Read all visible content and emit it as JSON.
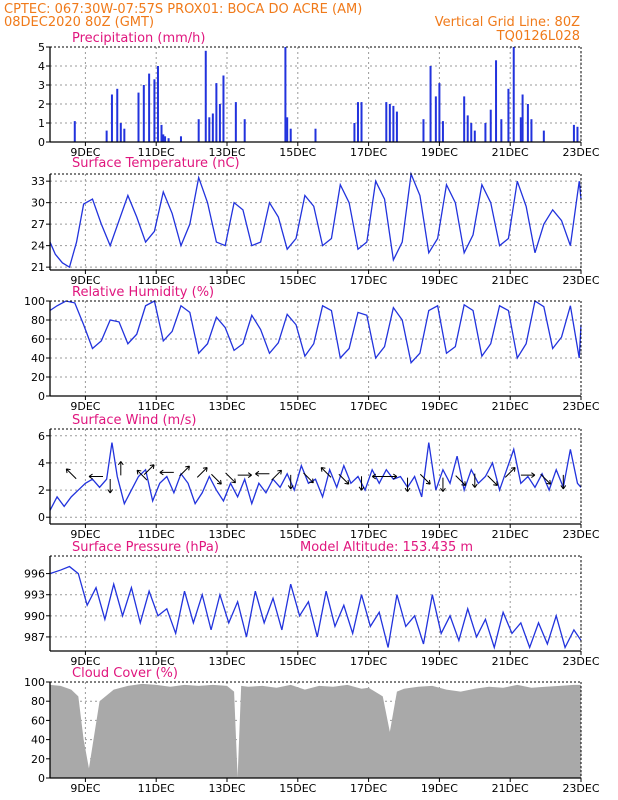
{
  "header": {
    "line1_left": "CPTEC:  067:30W-07:57S  PROX01: BOCA DO ACRE (AM)",
    "line2_left": "08DEC2020 80Z (GMT)",
    "line2_right": "Vertical Grid Line: 80Z",
    "line3_right": "TQ0126L028"
  },
  "colors": {
    "header": "#f07a1a",
    "panel_title": "#e0167e",
    "series": "#2233dd",
    "cloud_fill": "#a9a9a9",
    "grid": "#9a9a9a",
    "wind_arrow": "#000000"
  },
  "chart_data": [
    {
      "id": "precip",
      "type": "bar",
      "title": "Precipitation (mm/h)",
      "ylim": [
        0,
        5
      ],
      "yticks": [
        0,
        1,
        2,
        3,
        4,
        5
      ],
      "xlim": [
        8.0,
        23.0
      ],
      "xticks": [
        "9DEC",
        "11DEC",
        "13DEC",
        "15DEC",
        "17DEC",
        "19DEC",
        "21DEC",
        "23DEC"
      ],
      "grid": true,
      "x": [
        8.7,
        9.6,
        9.75,
        9.9,
        10.0,
        10.1,
        10.5,
        10.65,
        10.8,
        10.95,
        11.05,
        11.15,
        11.2,
        11.25,
        11.35,
        11.7,
        12.2,
        12.4,
        12.5,
        12.6,
        12.7,
        12.8,
        12.9,
        13.25,
        13.5,
        14.65,
        14.7,
        14.8,
        15.5,
        16.6,
        16.7,
        16.8,
        17.5,
        17.6,
        17.7,
        17.8,
        18.55,
        18.75,
        18.9,
        19.0,
        19.1,
        19.7,
        19.8,
        19.9,
        20.0,
        20.3,
        20.45,
        20.6,
        20.75,
        20.95,
        21.1,
        21.3,
        21.35,
        21.5,
        21.6,
        21.95,
        22.8,
        22.9
      ],
      "values": [
        1.1,
        0.6,
        2.5,
        2.8,
        1.0,
        0.7,
        2.6,
        3.0,
        3.6,
        3.3,
        4.0,
        0.9,
        0.4,
        0.3,
        0.2,
        0.3,
        1.2,
        4.8,
        1.3,
        1.5,
        3.1,
        2.0,
        3.5,
        2.1,
        1.2,
        5.0,
        1.3,
        0.7,
        0.7,
        1.0,
        2.1,
        2.1,
        2.1,
        2.0,
        1.9,
        1.6,
        1.2,
        4.0,
        2.4,
        3.1,
        1.1,
        2.4,
        1.4,
        1.0,
        0.6,
        1.0,
        1.7,
        4.3,
        1.2,
        2.8,
        5.0,
        1.3,
        2.5,
        2.0,
        1.2,
        0.6,
        0.9,
        0.8
      ]
    },
    {
      "id": "temp",
      "type": "line",
      "title": "Surface Temperature (nC)",
      "ylim": [
        20.6,
        34.0
      ],
      "yticks": [
        21,
        24,
        27,
        30,
        33
      ],
      "xlim": [
        8.0,
        23.0
      ],
      "xticks": [
        "9DEC",
        "11DEC",
        "13DEC",
        "15DEC",
        "17DEC",
        "19DEC",
        "21DEC",
        "23DEC"
      ],
      "grid": true,
      "x": [
        8.0,
        8.15,
        8.35,
        8.55,
        8.75,
        8.95,
        9.2,
        9.45,
        9.7,
        9.95,
        10.2,
        10.45,
        10.7,
        10.95,
        11.2,
        11.45,
        11.7,
        11.95,
        12.2,
        12.45,
        12.7,
        12.95,
        13.2,
        13.45,
        13.7,
        13.95,
        14.2,
        14.45,
        14.7,
        14.95,
        15.2,
        15.45,
        15.7,
        15.95,
        16.2,
        16.45,
        16.7,
        16.95,
        17.2,
        17.45,
        17.7,
        17.95,
        18.2,
        18.45,
        18.7,
        18.95,
        19.2,
        19.45,
        19.7,
        19.95,
        20.2,
        20.45,
        20.7,
        20.95,
        21.2,
        21.45,
        21.7,
        21.95,
        22.2,
        22.45,
        22.7,
        22.95,
        23.0
      ],
      "values": [
        24.5,
        22.8,
        21.6,
        21.0,
        24.5,
        29.8,
        30.5,
        27.0,
        24.0,
        27.5,
        31.0,
        28.0,
        24.5,
        26.0,
        31.5,
        28.5,
        24.0,
        27.0,
        33.5,
        30.0,
        24.5,
        24.0,
        30.0,
        29.0,
        24.0,
        24.5,
        30.0,
        28.0,
        23.5,
        25.0,
        31.0,
        29.5,
        24.0,
        25.0,
        32.5,
        30.0,
        23.5,
        24.5,
        33.0,
        30.5,
        22.0,
        24.5,
        34.0,
        31.0,
        23.0,
        25.0,
        32.5,
        30.0,
        23.0,
        25.5,
        32.5,
        30.0,
        24.0,
        25.0,
        33.0,
        29.5,
        23.0,
        27.0,
        29.0,
        27.5,
        24.0,
        33.0,
        30.5
      ]
    },
    {
      "id": "rh",
      "type": "line",
      "title": "Relative Humidity (%)",
      "ylim": [
        0,
        100
      ],
      "yticks": [
        0,
        20,
        40,
        60,
        80,
        100
      ],
      "xlim": [
        8.0,
        23.0
      ],
      "xticks": [
        "9DEC",
        "11DEC",
        "13DEC",
        "15DEC",
        "17DEC",
        "19DEC",
        "21DEC",
        "23DEC"
      ],
      "grid": true,
      "x": [
        8.0,
        8.2,
        8.45,
        8.7,
        8.95,
        9.2,
        9.45,
        9.7,
        9.95,
        10.2,
        10.45,
        10.7,
        10.95,
        11.2,
        11.45,
        11.7,
        11.95,
        12.2,
        12.45,
        12.7,
        12.95,
        13.2,
        13.45,
        13.7,
        13.95,
        14.2,
        14.45,
        14.7,
        14.95,
        15.2,
        15.45,
        15.7,
        15.95,
        16.2,
        16.45,
        16.7,
        16.95,
        17.2,
        17.45,
        17.7,
        17.95,
        18.2,
        18.45,
        18.7,
        18.95,
        19.2,
        19.45,
        19.7,
        19.95,
        20.2,
        20.45,
        20.7,
        20.95,
        21.2,
        21.45,
        21.7,
        21.95,
        22.2,
        22.45,
        22.7,
        22.95,
        23.0
      ],
      "values": [
        90,
        95,
        100,
        98,
        75,
        50,
        58,
        80,
        78,
        55,
        65,
        95,
        100,
        58,
        68,
        95,
        88,
        45,
        55,
        83,
        72,
        48,
        55,
        85,
        70,
        45,
        56,
        86,
        75,
        42,
        55,
        95,
        90,
        40,
        50,
        88,
        85,
        40,
        52,
        93,
        80,
        35,
        45,
        90,
        95,
        45,
        52,
        96,
        90,
        42,
        55,
        95,
        90,
        40,
        55,
        100,
        94,
        50,
        62,
        95,
        40,
        75
      ]
    },
    {
      "id": "wind",
      "type": "line",
      "title": "Surface Wind (m/s)",
      "ylim": [
        -0.5,
        6.5
      ],
      "yticks": [
        0,
        2,
        4,
        6
      ],
      "xlim": [
        8.0,
        23.0
      ],
      "xticks": [
        "9DEC",
        "11DEC",
        "13DEC",
        "15DEC",
        "17DEC",
        "19DEC",
        "21DEC",
        "23DEC"
      ],
      "grid": true,
      "x": [
        8.0,
        8.2,
        8.4,
        8.6,
        8.8,
        9.0,
        9.2,
        9.4,
        9.6,
        9.75,
        9.9,
        10.1,
        10.3,
        10.5,
        10.7,
        10.9,
        11.1,
        11.3,
        11.5,
        11.7,
        11.9,
        12.1,
        12.3,
        12.5,
        12.7,
        12.9,
        13.1,
        13.3,
        13.5,
        13.7,
        13.9,
        14.1,
        14.3,
        14.5,
        14.7,
        14.9,
        15.1,
        15.3,
        15.5,
        15.7,
        15.9,
        16.1,
        16.3,
        16.5,
        16.7,
        16.9,
        17.1,
        17.3,
        17.5,
        17.7,
        17.9,
        18.1,
        18.3,
        18.5,
        18.7,
        18.9,
        19.1,
        19.3,
        19.5,
        19.7,
        19.9,
        20.1,
        20.3,
        20.5,
        20.7,
        20.9,
        21.1,
        21.3,
        21.5,
        21.7,
        21.9,
        22.1,
        22.3,
        22.5,
        22.7,
        22.9,
        23.0
      ],
      "values": [
        0.5,
        1.5,
        0.8,
        1.5,
        2.0,
        2.5,
        2.8,
        2.2,
        2.8,
        5.5,
        3.0,
        1.0,
        2.0,
        3.0,
        3.5,
        1.2,
        2.5,
        3.0,
        1.8,
        3.2,
        2.5,
        1.0,
        1.8,
        3.0,
        2.0,
        1.2,
        2.5,
        1.5,
        2.8,
        1.0,
        2.5,
        1.8,
        2.8,
        2.2,
        3.2,
        2.0,
        3.8,
        2.5,
        2.8,
        1.5,
        3.5,
        2.2,
        3.8,
        2.5,
        3.0,
        2.0,
        3.5,
        2.5,
        3.5,
        2.8,
        3.0,
        2.2,
        3.0,
        1.5,
        5.5,
        2.0,
        3.5,
        2.5,
        4.5,
        2.0,
        3.5,
        2.5,
        3.0,
        4.0,
        2.0,
        3.5,
        5.0,
        2.5,
        3.0,
        2.2,
        3.2,
        2.0,
        3.5,
        2.2,
        5.0,
        2.5,
        2.2
      ],
      "arrows": [
        {
          "x": 8.6,
          "y": 3.2,
          "dir": "NW"
        },
        {
          "x": 9.3,
          "y": 3.0,
          "dir": "W"
        },
        {
          "x": 9.7,
          "y": 2.3,
          "dir": "S"
        },
        {
          "x": 10.0,
          "y": 3.6,
          "dir": "N"
        },
        {
          "x": 10.6,
          "y": 3.1,
          "dir": "NW"
        },
        {
          "x": 10.8,
          "y": 3.5,
          "dir": "NE"
        },
        {
          "x": 11.3,
          "y": 3.3,
          "dir": "W"
        },
        {
          "x": 11.8,
          "y": 3.4,
          "dir": "NE"
        },
        {
          "x": 12.3,
          "y": 3.3,
          "dir": "NE"
        },
        {
          "x": 12.7,
          "y": 2.8,
          "dir": "SE"
        },
        {
          "x": 13.1,
          "y": 2.9,
          "dir": "SE"
        },
        {
          "x": 13.5,
          "y": 3.1,
          "dir": "E"
        },
        {
          "x": 14.0,
          "y": 3.2,
          "dir": "W"
        },
        {
          "x": 14.4,
          "y": 3.1,
          "dir": "NE"
        },
        {
          "x": 14.8,
          "y": 2.6,
          "dir": "S"
        },
        {
          "x": 15.3,
          "y": 2.9,
          "dir": "SE"
        },
        {
          "x": 15.8,
          "y": 3.3,
          "dir": "NW"
        },
        {
          "x": 16.3,
          "y": 2.8,
          "dir": "SE"
        },
        {
          "x": 16.8,
          "y": 2.5,
          "dir": "S"
        },
        {
          "x": 17.3,
          "y": 3.0,
          "dir": "W"
        },
        {
          "x": 17.6,
          "y": 3.0,
          "dir": "E"
        },
        {
          "x": 18.1,
          "y": 2.4,
          "dir": "S"
        },
        {
          "x": 18.6,
          "y": 2.8,
          "dir": "SE"
        },
        {
          "x": 19.1,
          "y": 2.4,
          "dir": "S"
        },
        {
          "x": 19.6,
          "y": 2.7,
          "dir": "SE"
        },
        {
          "x": 20.0,
          "y": 2.7,
          "dir": "S"
        },
        {
          "x": 20.5,
          "y": 2.7,
          "dir": "SE"
        },
        {
          "x": 21.0,
          "y": 3.3,
          "dir": "NE"
        },
        {
          "x": 21.5,
          "y": 3.1,
          "dir": "E"
        },
        {
          "x": 22.0,
          "y": 2.8,
          "dir": "SE"
        },
        {
          "x": 22.5,
          "y": 2.6,
          "dir": "S"
        }
      ]
    },
    {
      "id": "pressure",
      "type": "line",
      "title": "Surface Pressure (hPa)",
      "annotation": "Model Altitude: 153.435 m",
      "ylim": [
        985.0,
        998.5
      ],
      "yticks": [
        987,
        990,
        993,
        996
      ],
      "xlim": [
        8.0,
        23.0
      ],
      "xticks": [
        "9DEC",
        "11DEC",
        "13DEC",
        "15DEC",
        "17DEC",
        "19DEC",
        "21DEC",
        "23DEC"
      ],
      "grid": true,
      "x": [
        8.0,
        8.3,
        8.55,
        8.8,
        9.05,
        9.3,
        9.55,
        9.8,
        10.05,
        10.3,
        10.55,
        10.8,
        11.05,
        11.3,
        11.55,
        11.8,
        12.05,
        12.3,
        12.55,
        12.8,
        13.05,
        13.3,
        13.55,
        13.8,
        14.05,
        14.3,
        14.55,
        14.8,
        15.05,
        15.3,
        15.55,
        15.8,
        16.05,
        16.3,
        16.55,
        16.8,
        17.05,
        17.3,
        17.55,
        17.8,
        18.05,
        18.3,
        18.55,
        18.8,
        19.05,
        19.3,
        19.55,
        19.8,
        20.05,
        20.3,
        20.55,
        20.8,
        21.05,
        21.3,
        21.55,
        21.8,
        22.05,
        22.3,
        22.55,
        22.8,
        23.0
      ],
      "values": [
        996.0,
        996.5,
        997.0,
        996.0,
        991.5,
        994.0,
        989.5,
        994.5,
        990.0,
        994.0,
        989.0,
        993.5,
        990.0,
        991.0,
        987.5,
        993.5,
        989.0,
        993.0,
        988.0,
        993.0,
        989.0,
        992.0,
        987.0,
        993.5,
        989.0,
        992.5,
        988.0,
        994.5,
        990.0,
        992.0,
        987.0,
        993.5,
        988.5,
        991.5,
        987.5,
        993.0,
        988.5,
        990.5,
        985.5,
        993.0,
        988.5,
        990.0,
        986.0,
        993.0,
        987.5,
        990.0,
        986.5,
        991.0,
        987.0,
        989.5,
        985.5,
        990.5,
        987.5,
        989.0,
        985.5,
        989.0,
        986.0,
        990.0,
        985.5,
        988.0,
        986.5
      ]
    },
    {
      "id": "cloud",
      "type": "area",
      "title": "Cloud Cover (%)",
      "ylim": [
        0,
        100
      ],
      "yticks": [
        0,
        20,
        40,
        60,
        80,
        100
      ],
      "xlim": [
        8.0,
        23.0
      ],
      "xticks": [
        "9DEC",
        "11DEC",
        "13DEC",
        "15DEC",
        "17DEC",
        "19DEC",
        "21DEC",
        "23DEC"
      ],
      "grid": true,
      "x": [
        8.0,
        8.3,
        8.6,
        8.8,
        8.95,
        9.1,
        9.4,
        9.8,
        10.2,
        10.6,
        11.0,
        11.4,
        11.8,
        12.2,
        12.6,
        13.0,
        13.2,
        13.3,
        13.4,
        13.6,
        14.0,
        14.4,
        14.8,
        15.2,
        15.6,
        16.0,
        16.4,
        16.8,
        17.0,
        17.4,
        17.6,
        17.8,
        18.0,
        18.4,
        18.8,
        19.2,
        19.6,
        20.0,
        20.4,
        20.8,
        21.2,
        21.6,
        22.0,
        22.4,
        22.8,
        23.0
      ],
      "values": [
        97,
        96,
        92,
        85,
        40,
        10,
        80,
        92,
        96,
        98,
        97,
        95,
        97,
        96,
        97,
        96,
        90,
        1,
        96,
        95,
        96,
        94,
        97,
        92,
        96,
        95,
        97,
        93,
        94,
        85,
        48,
        90,
        93,
        95,
        96,
        92,
        90,
        93,
        95,
        94,
        97,
        94,
        95,
        96,
        97,
        97
      ]
    }
  ]
}
